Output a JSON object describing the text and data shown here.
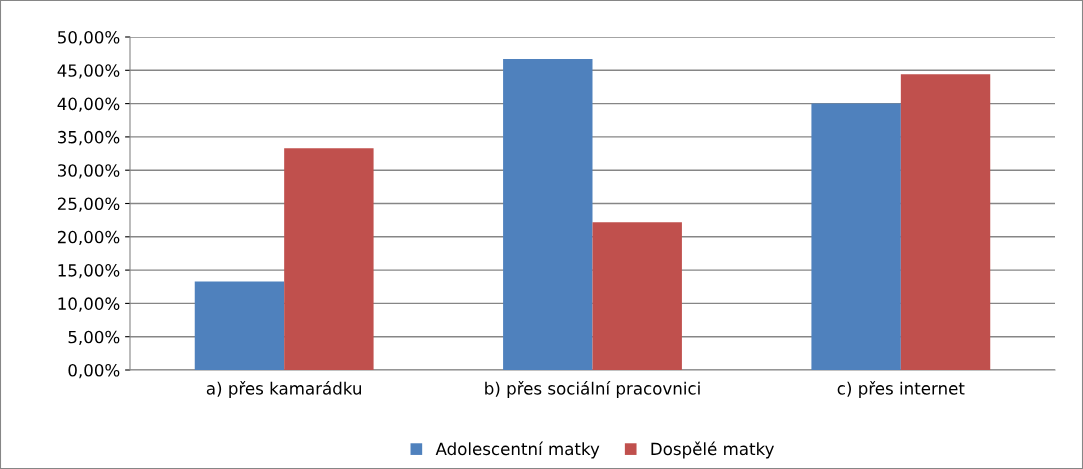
{
  "chart_data": {
    "type": "bar",
    "categories": [
      "a) přes kamarádku",
      "b) přes sociální pracovnici",
      "c) přes internet"
    ],
    "series": [
      {
        "name": "Adolescentní matky",
        "color": "#4f81bd",
        "values": [
          13.3,
          46.7,
          40.0
        ]
      },
      {
        "name": "Dospělé matky",
        "color": "#c0504d",
        "values": [
          33.3,
          22.2,
          44.4
        ]
      }
    ],
    "ylim": [
      0,
      50
    ],
    "yticks": [
      {
        "value": 0,
        "label": "0,00%"
      },
      {
        "value": 5,
        "label": "5,00%"
      },
      {
        "value": 10,
        "label": "10,00%"
      },
      {
        "value": 15,
        "label": "15,00%"
      },
      {
        "value": 20,
        "label": "20,00%"
      },
      {
        "value": 25,
        "label": "25,00%"
      },
      {
        "value": 30,
        "label": "30,00%"
      },
      {
        "value": 35,
        "label": "35,00%"
      },
      {
        "value": 40,
        "label": "40,00%"
      },
      {
        "value": 45,
        "label": "45,00%"
      },
      {
        "value": 50,
        "label": "50,00%"
      }
    ],
    "grid": "y",
    "legend": "bottom"
  }
}
